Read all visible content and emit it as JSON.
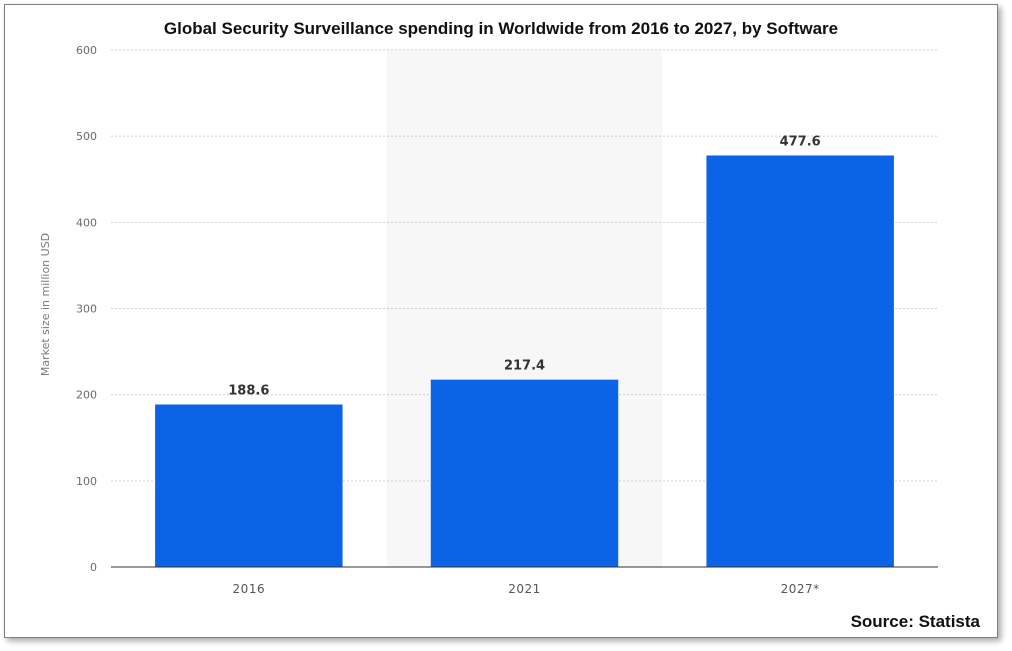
{
  "chart_data": {
    "type": "bar",
    "title": "Global Security Surveillance spending in Worldwide from 2016 to 2027, by Software",
    "ylabel": "Market size in million USD",
    "xlabel": "",
    "categories": [
      "2016",
      "2021",
      "2027*"
    ],
    "values": [
      188.6,
      217.4,
      477.6
    ],
    "data_labels": [
      "188.6",
      "217.4",
      "477.6"
    ],
    "yticks": [
      "0",
      "100",
      "200",
      "300",
      "400",
      "500",
      "600"
    ],
    "ylim": [
      0,
      600
    ],
    "grid": true,
    "bar_color": "#0b63e5",
    "highlight_band_category": "2021",
    "source": "Source: Statista"
  }
}
